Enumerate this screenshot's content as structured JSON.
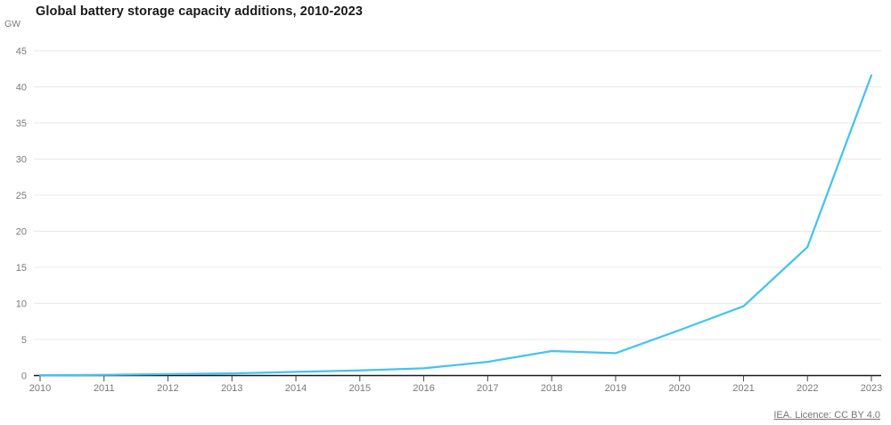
{
  "header": {
    "title": "Global battery storage capacity additions, 2010-2023"
  },
  "footer": {
    "source_link_label": "IEA. Licence: CC BY 4.0"
  },
  "chart_data": {
    "type": "line",
    "title": "Global battery storage capacity additions, 2010-2023",
    "ylabel": "GW",
    "xlabel": "",
    "categories": [
      "2010",
      "2011",
      "2012",
      "2013",
      "2014",
      "2015",
      "2016",
      "2017",
      "2018",
      "2019",
      "2020",
      "2021",
      "2022",
      "2023"
    ],
    "series": [
      {
        "name": "Battery storage capacity additions",
        "values": [
          0.05,
          0.1,
          0.2,
          0.3,
          0.5,
          0.7,
          1.0,
          1.9,
          3.4,
          3.1,
          6.3,
          9.6,
          17.8,
          41.6
        ]
      }
    ],
    "ylim": [
      0,
      45
    ],
    "yticks": [
      0,
      5,
      10,
      15,
      20,
      25,
      30,
      35,
      40,
      45
    ],
    "grid": "horizontal",
    "legend_position": "none",
    "colors": {
      "line": "#45c3f0",
      "gridline": "#e8e8e8",
      "axis": "#1a1a1a",
      "tick": "#444444",
      "tick_label": "#7a7a7a",
      "title_text": "#1a1a1a"
    }
  }
}
